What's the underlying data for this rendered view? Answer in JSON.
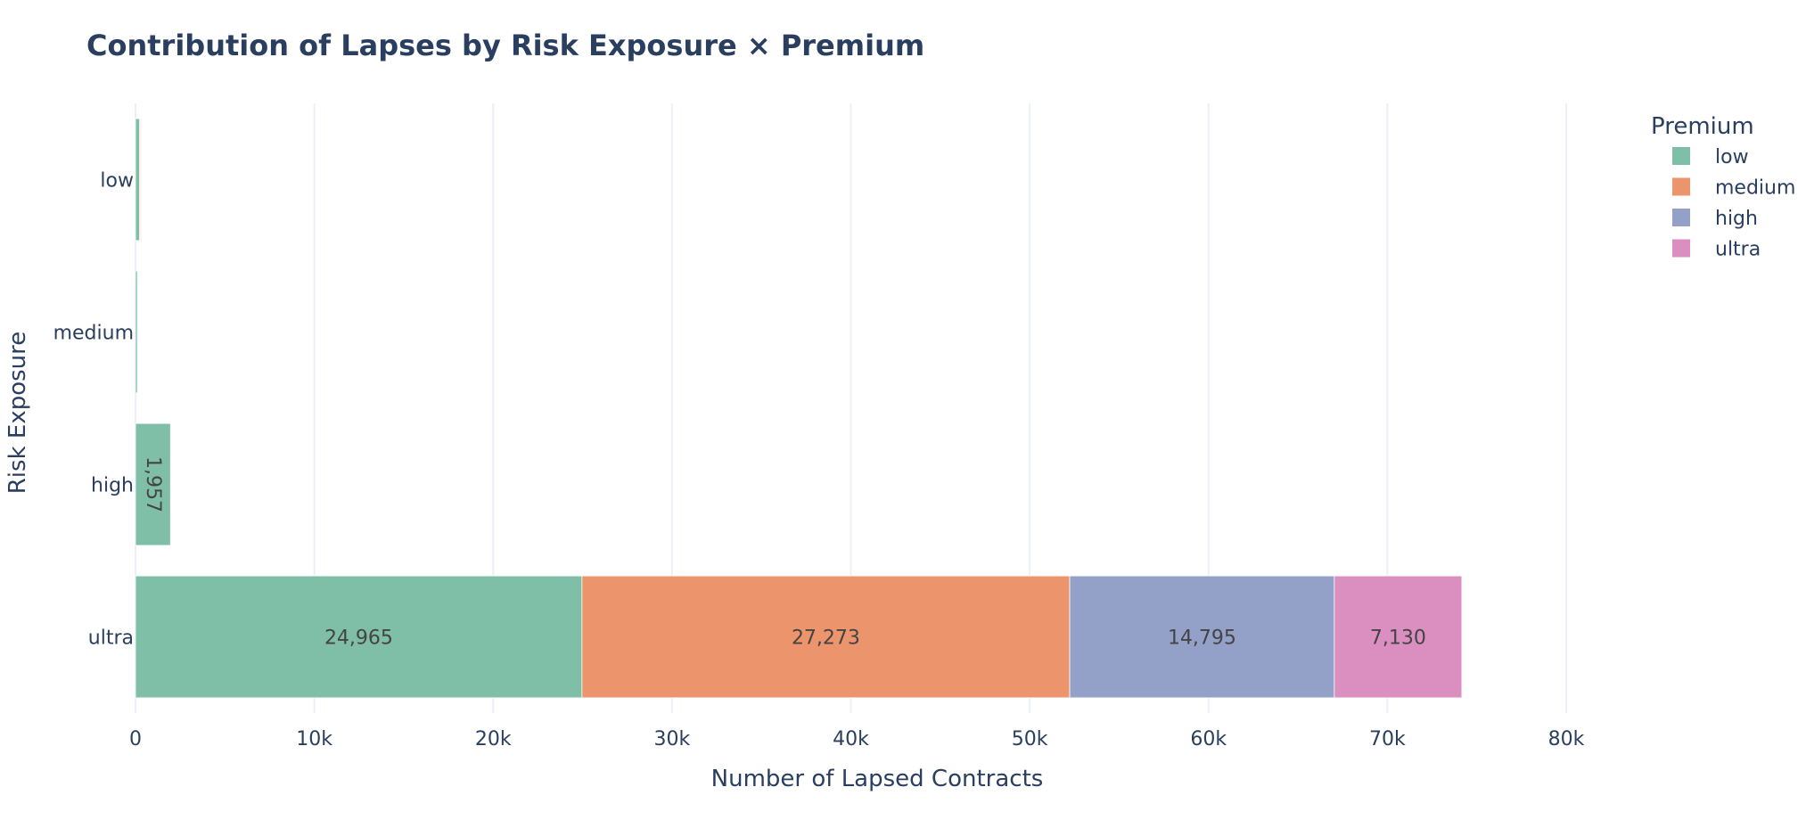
{
  "chart_data": {
    "type": "bar",
    "orientation": "horizontal",
    "barmode": "stack",
    "title": "Contribution of Lapses by Risk Exposure × Premium",
    "xlabel": "Number of Lapsed Contracts",
    "ylabel": "Risk Exposure",
    "categories": [
      "low",
      "medium",
      "high",
      "ultra"
    ],
    "xlim": [
      0,
      80000
    ],
    "x_ticks": [
      {
        "value": 0,
        "label": "0"
      },
      {
        "value": 10000,
        "label": "10k"
      },
      {
        "value": 20000,
        "label": "20k"
      },
      {
        "value": 30000,
        "label": "30k"
      },
      {
        "value": 40000,
        "label": "40k"
      },
      {
        "value": 50000,
        "label": "50k"
      },
      {
        "value": 60000,
        "label": "60k"
      },
      {
        "value": 70000,
        "label": "70k"
      },
      {
        "value": 80000,
        "label": "80k"
      }
    ],
    "grid": true,
    "legend": {
      "title": "Premium",
      "position": "top-right"
    },
    "series": [
      {
        "name": "low",
        "color": "#7fbfa7",
        "values": [
          220,
          110,
          1957,
          24965
        ],
        "labels": [
          "",
          "",
          "1,957",
          "24,965"
        ]
      },
      {
        "name": "medium",
        "color": "#ec946c",
        "values": [
          60,
          12,
          0,
          27273
        ],
        "labels": [
          "",
          "",
          "",
          "27,273"
        ]
      },
      {
        "name": "high",
        "color": "#93a1c8",
        "values": [
          50,
          8,
          0,
          14795
        ],
        "labels": [
          "",
          "",
          "",
          "14,795"
        ]
      },
      {
        "name": "ultra",
        "color": "#db8fc1",
        "values": [
          30,
          5,
          0,
          7130
        ],
        "labels": [
          "",
          "",
          "",
          "7,130"
        ]
      }
    ]
  }
}
